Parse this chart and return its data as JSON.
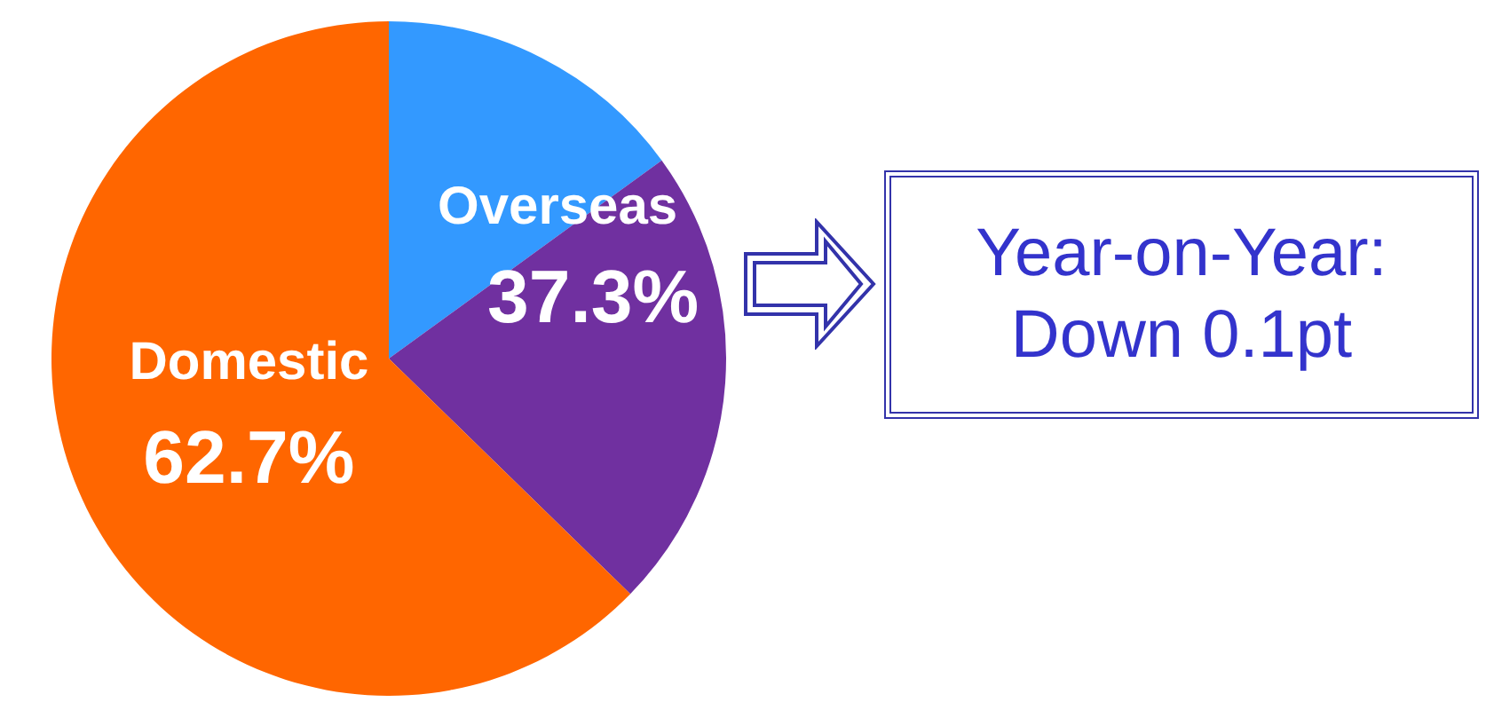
{
  "chart_data": {
    "type": "pie",
    "categories": [
      null,
      null,
      "Domestic"
    ],
    "values": [
      15,
      22.3,
      62.7
    ],
    "colors": [
      "#3399ff",
      "#7030a0",
      "#ff6600"
    ],
    "value_labels": [
      null,
      null,
      "62.7%"
    ],
    "annotations": [
      "Overseas",
      "37.3%",
      "Year-on-Year:\nDown 0.1pt"
    ]
  }
}
